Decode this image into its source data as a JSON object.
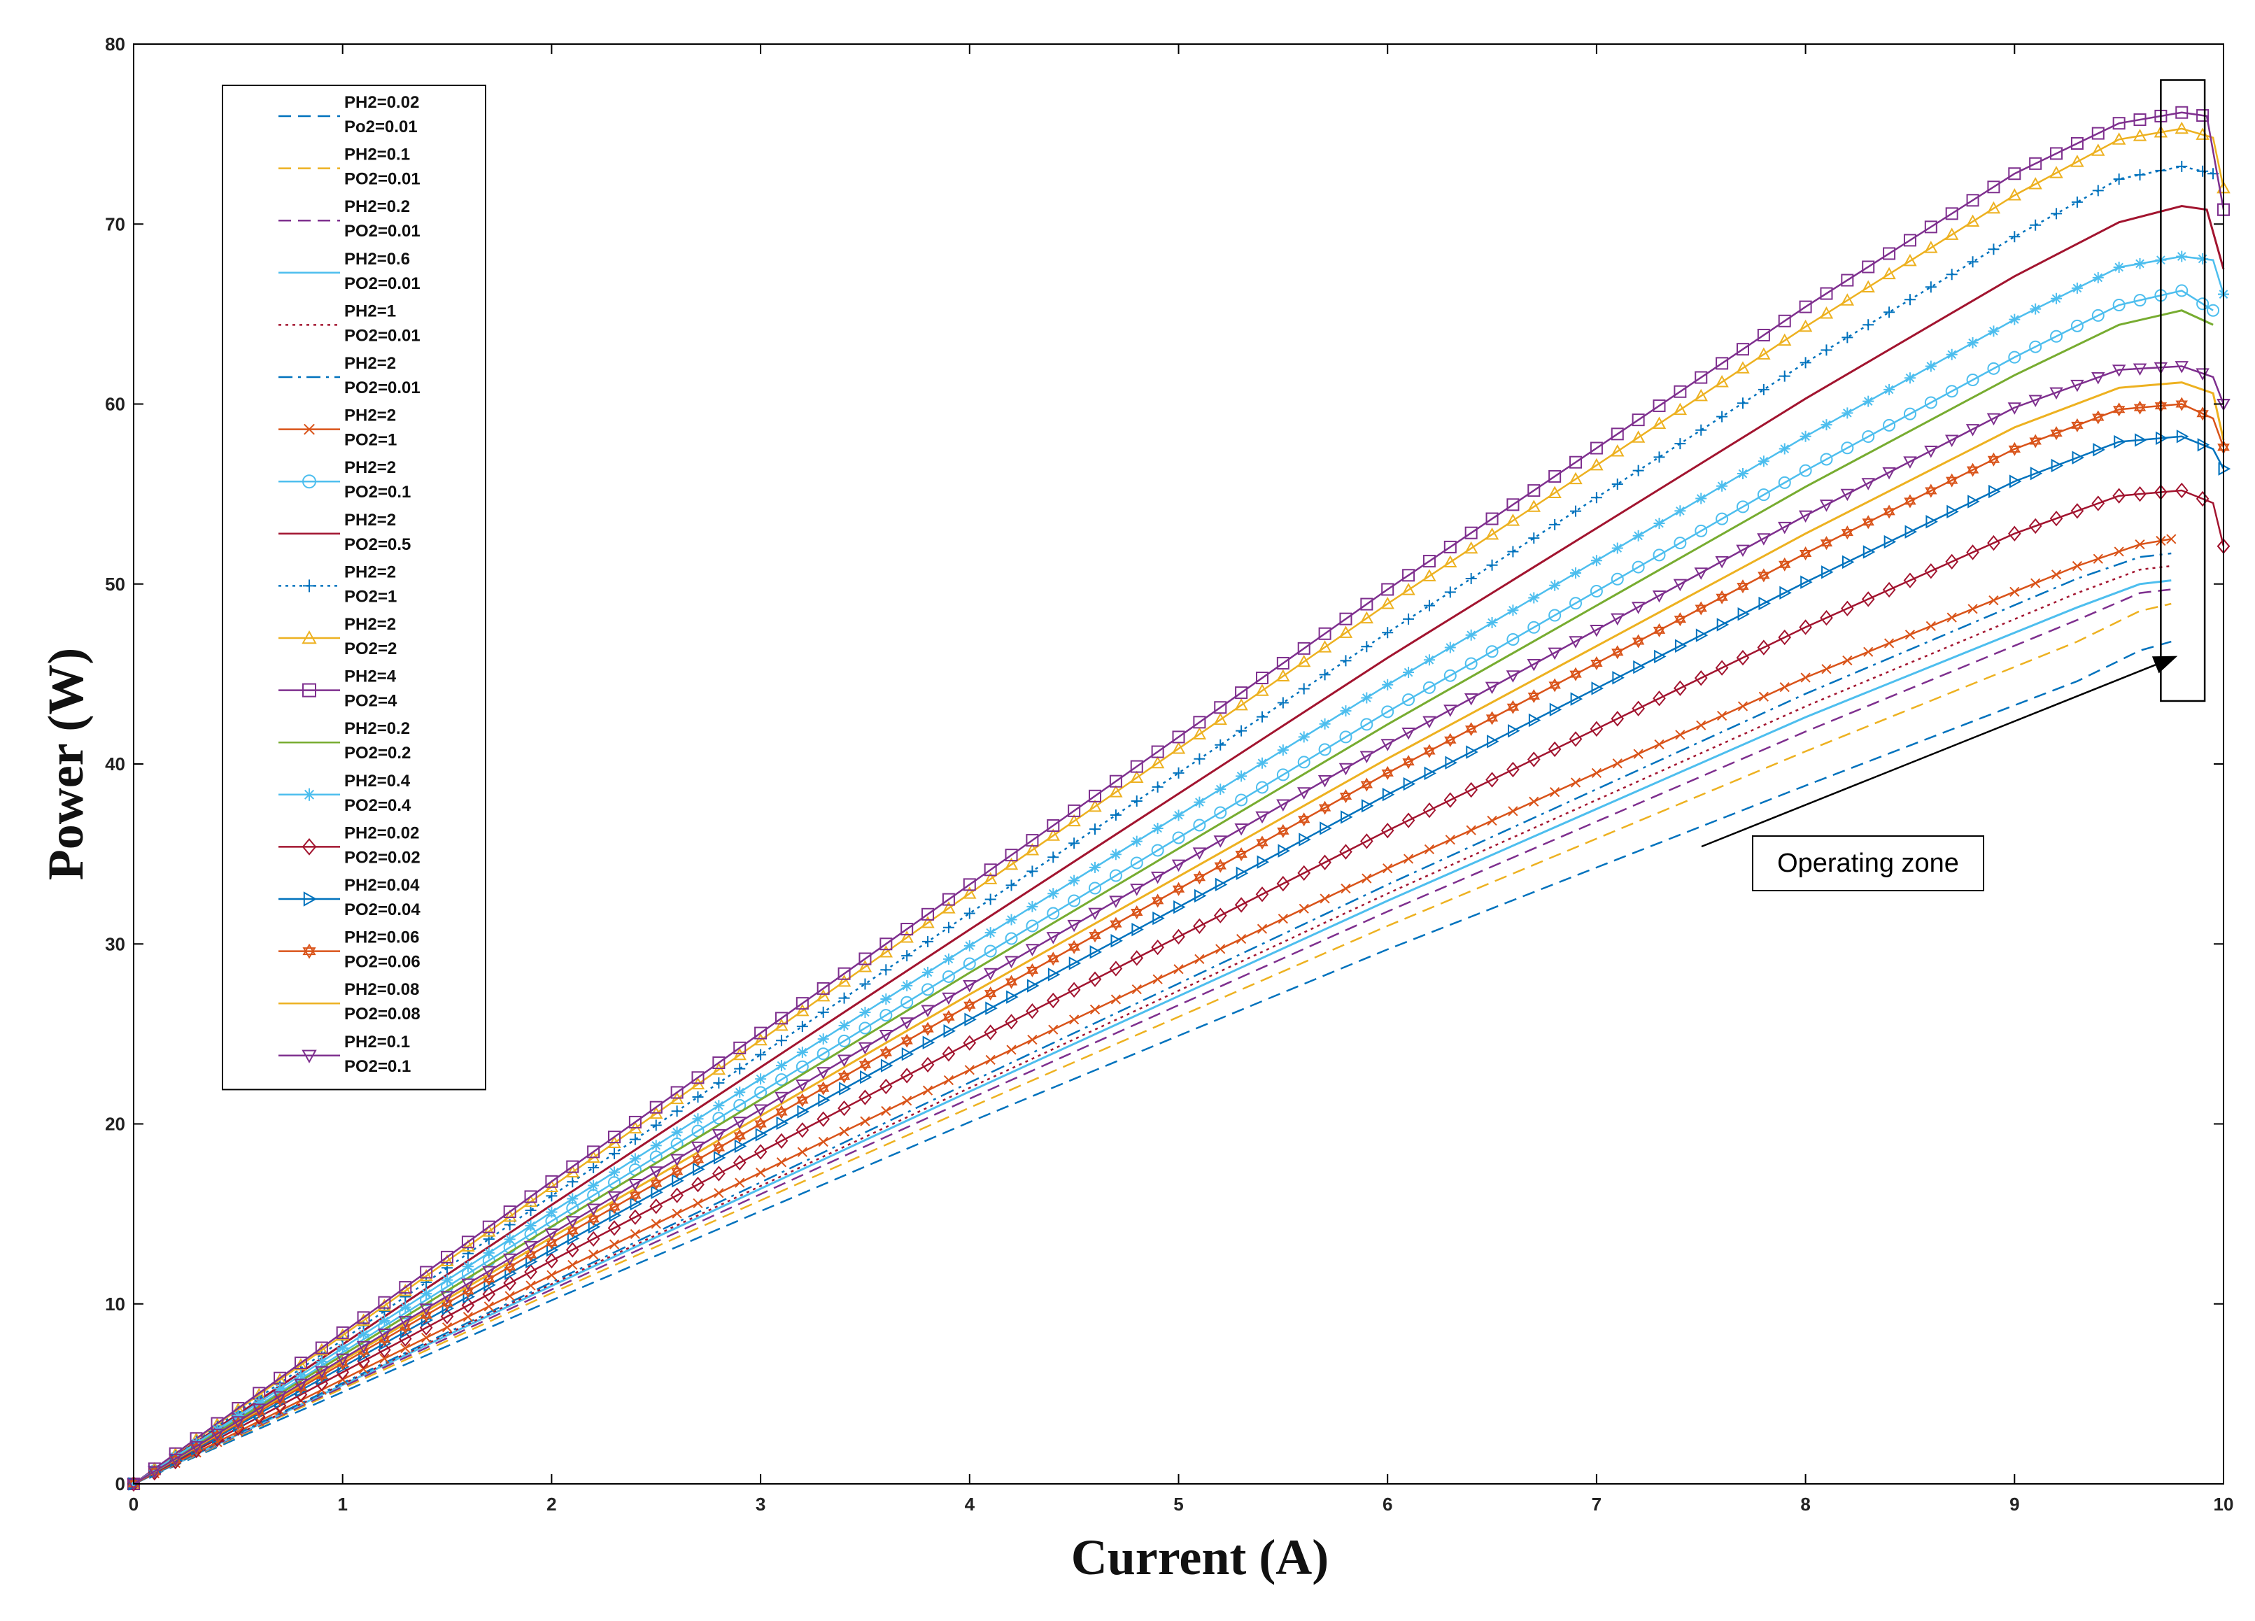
{
  "chart_data": {
    "type": "line",
    "xlabel": "Current (A)",
    "ylabel": "Power (W)",
    "xlim": [
      0,
      10
    ],
    "ylim": [
      0,
      80
    ],
    "xticks": [
      0,
      1,
      2,
      3,
      4,
      5,
      6,
      7,
      8,
      9,
      10
    ],
    "yticks": [
      0,
      10,
      20,
      30,
      40,
      50,
      60,
      70,
      80
    ],
    "grid": false,
    "legend_position": "top-left",
    "annotation": {
      "text": "Operating zone",
      "box_x": [
        9.7,
        9.91
      ],
      "box_y": [
        43.5,
        78
      ],
      "arrow_to": [
        9.78,
        46
      ]
    },
    "series": [
      {
        "name_lines": [
          "PH2=0.02",
          "Po2=0.01"
        ],
        "color": "#0072BD",
        "dash": "dashed",
        "marker": "none",
        "x": [
          0,
          2,
          4,
          6,
          8,
          9.3,
          9.6,
          9.75
        ],
        "y": [
          0,
          10.2,
          20.1,
          29.7,
          38.8,
          44.6,
          46.3,
          46.8
        ]
      },
      {
        "name_lines": [
          "PH2=0.1",
          "PO2=0.01"
        ],
        "color": "#EDB120",
        "dash": "dashed",
        "marker": "none",
        "x": [
          0,
          2,
          4,
          6,
          8,
          9.3,
          9.6,
          9.75
        ],
        "y": [
          0,
          10.6,
          20.9,
          31.0,
          40.7,
          46.8,
          48.5,
          48.9
        ]
      },
      {
        "name_lines": [
          "PH2=0.2",
          "PO2=0.01"
        ],
        "color": "#7E2F8E",
        "dash": "dashed",
        "marker": "none",
        "x": [
          0,
          2,
          4,
          6,
          8,
          9.3,
          9.6,
          9.75
        ],
        "y": [
          0,
          10.8,
          21.4,
          31.8,
          41.8,
          48.0,
          49.5,
          49.7
        ]
      },
      {
        "name_lines": [
          "PH2=0.6",
          "PO2=0.01"
        ],
        "color": "#4DBEEE",
        "dash": "solid",
        "marker": "none",
        "x": [
          0,
          2,
          4,
          6,
          8,
          9.3,
          9.6,
          9.75
        ],
        "y": [
          0,
          11.0,
          21.8,
          32.4,
          42.6,
          48.7,
          50.0,
          50.2
        ]
      },
      {
        "name_lines": [
          "PH2=1",
          "PO2=0.01"
        ],
        "color": "#A2142F",
        "dash": "dotted",
        "marker": "none",
        "x": [
          0,
          2,
          4,
          6,
          8,
          9.3,
          9.6,
          9.75
        ],
        "y": [
          0,
          11.1,
          22.0,
          32.8,
          43.2,
          49.5,
          50.8,
          51.0
        ]
      },
      {
        "name_lines": [
          "PH2=2",
          "PO2=0.01"
        ],
        "color": "#0072BD",
        "dash": "dashdot",
        "marker": "none",
        "x": [
          0,
          2,
          4,
          6,
          8,
          9.3,
          9.6,
          9.75
        ],
        "y": [
          0,
          11.2,
          22.3,
          33.3,
          43.9,
          50.3,
          51.5,
          51.7
        ]
      },
      {
        "name_lines": [
          "PH2=2",
          "PO2=1"
        ],
        "color": "#D95319",
        "dash": "solid",
        "marker": "x",
        "x": [
          0,
          2,
          4,
          6,
          8,
          9.3,
          9.6,
          9.75
        ],
        "y": [
          0,
          11.6,
          23.0,
          34.2,
          44.8,
          51.0,
          52.2,
          52.5
        ]
      },
      {
        "name_lines": [
          "PH2=2",
          "PO2=0.1"
        ],
        "color": "#4DBEEE",
        "dash": "solid",
        "marker": "o",
        "x": [
          0,
          2,
          4,
          6,
          8,
          9.0,
          9.5,
          9.8,
          9.95
        ],
        "y": [
          0,
          14.6,
          28.9,
          42.9,
          56.3,
          62.6,
          65.5,
          66.3,
          65.2
        ]
      },
      {
        "name_lines": [
          "PH2=2",
          "PO2=0.5"
        ],
        "color": "#A2142F",
        "dash": "solid",
        "marker": "none",
        "x": [
          0,
          2,
          4,
          6,
          8,
          9.0,
          9.5,
          9.8,
          9.92,
          10.0
        ],
        "y": [
          0,
          15.5,
          30.8,
          45.9,
          60.3,
          67.1,
          70.1,
          71.0,
          70.8,
          67.5
        ]
      },
      {
        "name_lines": [
          "PH2=2",
          "PO2=1"
        ],
        "color": "#0072BD",
        "dash": "dotted",
        "marker": "+",
        "x": [
          0,
          2,
          4,
          6,
          8,
          9.0,
          9.5,
          9.8,
          9.95
        ],
        "y": [
          0,
          16.0,
          31.7,
          47.3,
          62.3,
          69.3,
          72.5,
          73.2,
          72.8
        ]
      },
      {
        "name_lines": [
          "PH2=2",
          "PO2=2"
        ],
        "color": "#EDB120",
        "dash": "solid",
        "marker": "triangle-up",
        "x": [
          0,
          2,
          4,
          6,
          8,
          9.0,
          9.5,
          9.8,
          9.95,
          10.0
        ],
        "y": [
          0,
          16.5,
          32.8,
          48.9,
          64.3,
          71.6,
          74.7,
          75.3,
          74.8,
          72.0
        ]
      },
      {
        "name_lines": [
          "PH2=4",
          "PO2=4"
        ],
        "color": "#7E2F8E",
        "dash": "solid",
        "marker": "square",
        "x": [
          0,
          2,
          4,
          6,
          8,
          9.0,
          9.5,
          9.8,
          9.92,
          10.0
        ],
        "y": [
          0,
          16.8,
          33.3,
          49.7,
          65.4,
          72.8,
          75.6,
          76.2,
          76.0,
          70.8
        ]
      },
      {
        "name_lines": [
          "PH2=0.2",
          "PO2=0.2"
        ],
        "color": "#77AC30",
        "dash": "solid",
        "marker": "none",
        "x": [
          0,
          2,
          4,
          6,
          8,
          9.0,
          9.5,
          9.8,
          9.95
        ],
        "y": [
          0,
          14.3,
          28.4,
          42.2,
          55.4,
          61.6,
          64.4,
          65.2,
          64.4
        ]
      },
      {
        "name_lines": [
          "PH2=0.4",
          "PO2=0.4"
        ],
        "color": "#4DBEEE",
        "dash": "solid",
        "marker": "asterisk",
        "x": [
          0,
          2,
          4,
          6,
          8,
          9.0,
          9.5,
          9.8,
          9.95,
          10.0
        ],
        "y": [
          0,
          15.1,
          29.9,
          44.4,
          58.2,
          64.7,
          67.6,
          68.2,
          68.0,
          66.1
        ]
      },
      {
        "name_lines": [
          "PH2=0.02",
          "PO2=0.02"
        ],
        "color": "#A2142F",
        "dash": "solid",
        "marker": "diamond",
        "x": [
          0,
          2,
          4,
          6,
          8,
          9.0,
          9.5,
          9.8,
          9.95,
          10.0
        ],
        "y": [
          0,
          12.4,
          24.5,
          36.3,
          47.6,
          52.8,
          54.9,
          55.2,
          54.5,
          52.1
        ]
      },
      {
        "name_lines": [
          "PH2=0.04",
          "PO2=0.04"
        ],
        "color": "#0072BD",
        "dash": "solid",
        "marker": "triangle-right",
        "x": [
          0,
          2,
          4,
          6,
          8,
          9.0,
          9.5,
          9.8,
          9.95,
          10.0
        ],
        "y": [
          0,
          13.0,
          25.8,
          38.3,
          50.1,
          55.7,
          57.9,
          58.2,
          57.5,
          56.4
        ]
      },
      {
        "name_lines": [
          "PH2=0.06",
          "PO2=0.06"
        ],
        "color": "#D95319",
        "dash": "solid",
        "marker": "hexagram",
        "x": [
          0,
          2,
          4,
          6,
          8,
          9.0,
          9.5,
          9.8,
          9.95,
          10.0
        ],
        "y": [
          0,
          13.4,
          26.6,
          39.5,
          51.7,
          57.5,
          59.7,
          60.0,
          59.2,
          57.6
        ]
      },
      {
        "name_lines": [
          "PH2=0.08",
          "PO2=0.08"
        ],
        "color": "#EDB120",
        "dash": "solid",
        "marker": "none",
        "x": [
          0,
          2,
          4,
          6,
          8,
          9.0,
          9.5,
          9.8,
          9.95,
          10.0
        ],
        "y": [
          0,
          13.7,
          27.2,
          40.3,
          52.8,
          58.7,
          60.9,
          61.2,
          60.6,
          58.0
        ]
      },
      {
        "name_lines": [
          "PH2=0.1",
          "PO2=0.1"
        ],
        "color": "#7E2F8E",
        "dash": "solid",
        "marker": "triangle-down",
        "x": [
          0,
          2,
          4,
          6,
          8,
          9.0,
          9.5,
          9.8,
          9.95,
          10.0
        ],
        "y": [
          0,
          13.9,
          27.7,
          41.1,
          53.8,
          59.8,
          61.9,
          62.1,
          61.5,
          60.0
        ]
      }
    ]
  }
}
